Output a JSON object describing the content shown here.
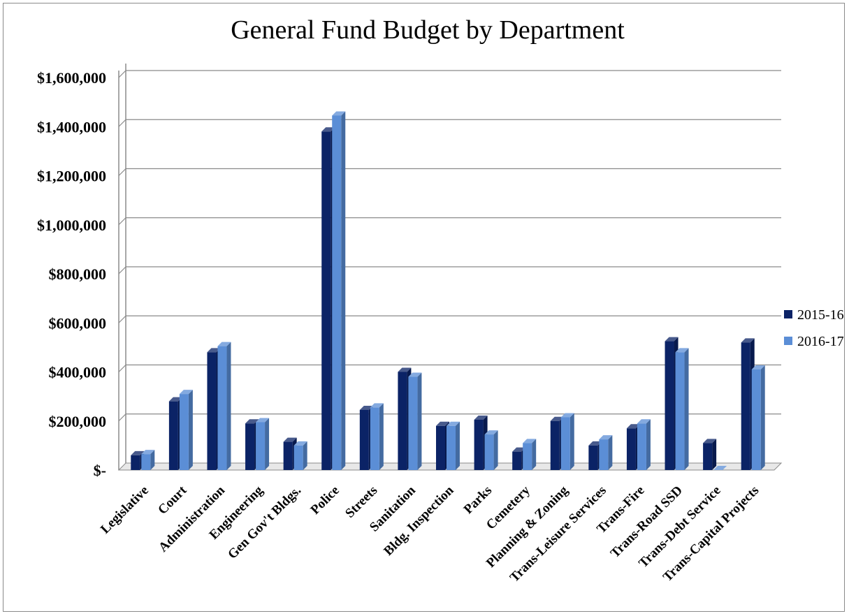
{
  "chart_data": {
    "type": "bar",
    "title": "General Fund Budget by Department",
    "xlabel": "",
    "ylabel": "",
    "ylim": [
      0,
      1600000
    ],
    "yticks": [
      0,
      200000,
      400000,
      600000,
      800000,
      1000000,
      1200000,
      1400000,
      1600000
    ],
    "ytick_labels": [
      "$-",
      "$200,000",
      "$400,000",
      "$600,000",
      "$800,000",
      "$1,000,000",
      "$1,200,000",
      "$1,400,000",
      "$1,600,000"
    ],
    "grid": true,
    "legend_position": "right",
    "categories": [
      "Legislative",
      "Court",
      "Administration",
      "Engineering",
      "Gen Gov't Bldgs.",
      "Police",
      "Streets",
      "Sanitation",
      "Bldg. Inspection",
      "Parks",
      "Cemetery",
      "Planning & Zoning",
      "Trans-Leisure Services",
      "Trans-Fire",
      "Trans-Road SSD",
      "Trans-Debt Service",
      "Trans-Capital Projects"
    ],
    "series": [
      {
        "name": "2015-16",
        "color": "#0b2366",
        "values": [
          60000,
          280000,
          480000,
          190000,
          115000,
          1380000,
          245000,
          400000,
          180000,
          205000,
          75000,
          200000,
          100000,
          170000,
          525000,
          110000,
          520000
        ]
      },
      {
        "name": "2016-17",
        "color": "#5b8ed6",
        "values": [
          65000,
          310000,
          505000,
          195000,
          100000,
          1445000,
          255000,
          380000,
          180000,
          145000,
          110000,
          215000,
          125000,
          190000,
          480000,
          0,
          410000
        ]
      }
    ]
  }
}
